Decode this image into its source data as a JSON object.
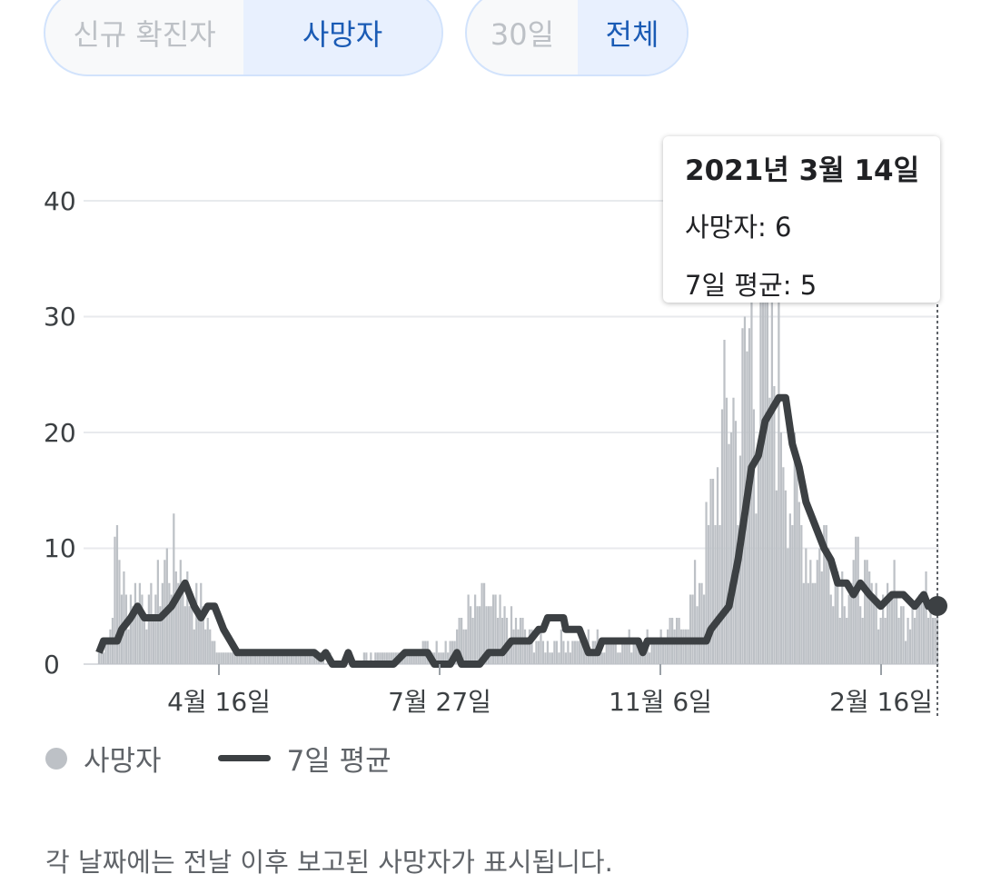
{
  "toggles": {
    "metric": {
      "options": [
        "신규 확진자",
        "사망자"
      ],
      "selected": "사망자"
    },
    "range": {
      "options": [
        "30일",
        "전체"
      ],
      "selected": "전체"
    }
  },
  "tooltip": {
    "date": "2021년 3월 14일",
    "deaths_line": "사망자: 6",
    "avg_line": "7일 평균: 5"
  },
  "legend": {
    "bars_label": "사망자",
    "line_label": "7일 평균"
  },
  "footnote": "각 날짜에는 전날 이후 보고된 사망자가 표시됩니다.",
  "colors": {
    "bars": "#bdc1c6",
    "avg_line": "#3c4043",
    "grid": "#e8eaed",
    "accent": "#1a5bb5"
  },
  "chart_data": {
    "type": "bar",
    "x_ticks": [
      "4월 16일",
      "7월 27일",
      "11월 6일",
      "2월 16일"
    ],
    "y_ticks": [
      0,
      10,
      20,
      30,
      40
    ],
    "ylim": [
      0,
      40
    ],
    "grid": true,
    "legend_position": "bottom-left",
    "start_date": "2020-03-05",
    "end_date": "2021-03-14",
    "highlight": {
      "date": "2021-03-14",
      "deaths": 6,
      "avg": 5
    },
    "series": [
      {
        "name": "사망자",
        "type": "bar",
        "anchors": [
          [
            0,
            1
          ],
          [
            5,
            3
          ],
          [
            8,
            11
          ],
          [
            12,
            5
          ],
          [
            18,
            7
          ],
          [
            22,
            4
          ],
          [
            28,
            8
          ],
          [
            35,
            9
          ],
          [
            40,
            6
          ],
          [
            45,
            5
          ],
          [
            48,
            4
          ],
          [
            50,
            2
          ],
          [
            55,
            1
          ],
          [
            65,
            1
          ],
          [
            80,
            1
          ],
          [
            95,
            1
          ],
          [
            110,
            0
          ],
          [
            125,
            1
          ],
          [
            140,
            1
          ],
          [
            155,
            2
          ],
          [
            162,
            4
          ],
          [
            170,
            5
          ],
          [
            178,
            4
          ],
          [
            185,
            3
          ],
          [
            195,
            2
          ],
          [
            210,
            2
          ],
          [
            230,
            2
          ],
          [
            245,
            2
          ],
          [
            255,
            3
          ],
          [
            263,
            6
          ],
          [
            268,
            10
          ],
          [
            272,
            15
          ],
          [
            276,
            20
          ],
          [
            279,
            24
          ],
          [
            282,
            18
          ],
          [
            285,
            25
          ],
          [
            288,
            30
          ],
          [
            290,
            20
          ],
          [
            292,
            36
          ],
          [
            295,
            24
          ],
          [
            298,
            25
          ],
          [
            302,
            22
          ],
          [
            305,
            15
          ],
          [
            310,
            12
          ],
          [
            315,
            8
          ],
          [
            320,
            11
          ],
          [
            325,
            8
          ],
          [
            330,
            7
          ],
          [
            335,
            8
          ],
          [
            340,
            6
          ],
          [
            345,
            5
          ],
          [
            350,
            7
          ],
          [
            355,
            4
          ],
          [
            360,
            6
          ],
          [
            365,
            6
          ],
          [
            370,
            6
          ]
        ]
      },
      {
        "name": "7일 평균",
        "type": "line",
        "anchors": [
          [
            0,
            1
          ],
          [
            2,
            2
          ],
          [
            8,
            2
          ],
          [
            10,
            3
          ],
          [
            14,
            4
          ],
          [
            17,
            5
          ],
          [
            20,
            4
          ],
          [
            27,
            4
          ],
          [
            32,
            5
          ],
          [
            35,
            6
          ],
          [
            38,
            7
          ],
          [
            40,
            6
          ],
          [
            42,
            5
          ],
          [
            45,
            4
          ],
          [
            48,
            5
          ],
          [
            51,
            5
          ],
          [
            53,
            4
          ],
          [
            55,
            3
          ],
          [
            58,
            2
          ],
          [
            61,
            1
          ],
          [
            95,
            1
          ],
          [
            98,
            0.5
          ],
          [
            100,
            1
          ],
          [
            103,
            0
          ],
          [
            108,
            0
          ],
          [
            110,
            1
          ],
          [
            112,
            0
          ],
          [
            130,
            0
          ],
          [
            135,
            1
          ],
          [
            145,
            1
          ],
          [
            148,
            0
          ],
          [
            155,
            0
          ],
          [
            158,
            1
          ],
          [
            160,
            0
          ],
          [
            168,
            0
          ],
          [
            172,
            1
          ],
          [
            178,
            1
          ],
          [
            182,
            2
          ],
          [
            190,
            2
          ],
          [
            194,
            3
          ],
          [
            196,
            3
          ],
          [
            198,
            4
          ],
          [
            205,
            4
          ],
          [
            206,
            3
          ],
          [
            212,
            3
          ],
          [
            214,
            2
          ],
          [
            216,
            1
          ],
          [
            220,
            1
          ],
          [
            222,
            2
          ],
          [
            238,
            2
          ],
          [
            240,
            1
          ],
          [
            242,
            2
          ],
          [
            268,
            2
          ],
          [
            270,
            3
          ],
          [
            274,
            4
          ],
          [
            278,
            5
          ],
          [
            282,
            9
          ],
          [
            285,
            13
          ],
          [
            288,
            17
          ],
          [
            291,
            18
          ],
          [
            294,
            21
          ],
          [
            297,
            22
          ],
          [
            300,
            23
          ],
          [
            303,
            23
          ],
          [
            306,
            19
          ],
          [
            309,
            17
          ],
          [
            312,
            14
          ],
          [
            316,
            12
          ],
          [
            320,
            10
          ],
          [
            323,
            9
          ],
          [
            326,
            7
          ],
          [
            330,
            7
          ],
          [
            333,
            6
          ],
          [
            336,
            7
          ],
          [
            340,
            6
          ],
          [
            345,
            5
          ],
          [
            350,
            6
          ],
          [
            355,
            6
          ],
          [
            360,
            5
          ],
          [
            364,
            6
          ],
          [
            366,
            5
          ],
          [
            370,
            5
          ]
        ]
      }
    ]
  }
}
